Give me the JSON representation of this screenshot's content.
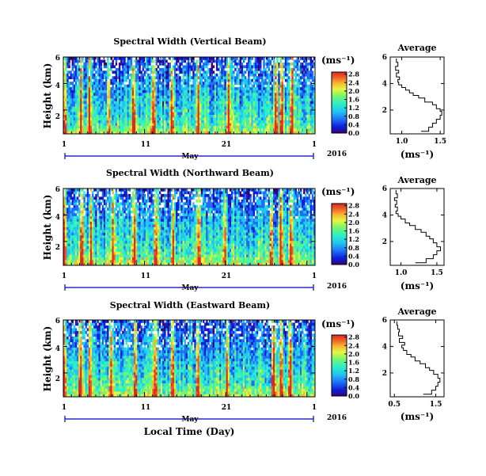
{
  "figure": {
    "xlabel": "Local Time (Day)",
    "month_label": "May",
    "year_label": "2016",
    "colorbar_unit": "(ms⁻¹)",
    "average_title": "Average",
    "average_xlabel": "(ms⁻¹)"
  },
  "chart_data": [
    {
      "type": "heatmap",
      "title": "Spectral Width (Vertical Beam)",
      "ylabel": "Height (km)",
      "x_ticks": [
        "1",
        "11",
        "21",
        "1"
      ],
      "x_range_days": [
        1,
        32
      ],
      "y_ticks": [
        "2",
        "4",
        "6"
      ],
      "ylim": [
        0.2,
        6
      ],
      "colorbar": {
        "ticks": [
          "0.0",
          "0.4",
          "0.8",
          "1.2",
          "1.6",
          "2.0",
          "2.4",
          "2.8"
        ],
        "range": [
          0,
          2.9
        ]
      },
      "high_width_days": [
        1.2,
        3.2,
        4.2,
        6.6,
        9.6,
        12.1,
        14.4,
        17.6,
        21.3,
        27.2,
        27.9,
        29.2
      ],
      "colorscale": [
        "#3a0078",
        "#0b1fd8",
        "#1f6df5",
        "#22c3f5",
        "#2cf0c6",
        "#74f56f",
        "#e6f542",
        "#f8b430",
        "#ee5a26",
        "#d92a22"
      ]
    },
    {
      "type": "heatmap",
      "title": "Spectral Width (Northward Beam)",
      "ylabel": "Height (km)",
      "x_ticks": [
        "1",
        "11",
        "21",
        "1"
      ],
      "x_range_days": [
        1,
        32
      ],
      "y_ticks": [
        "2",
        "4",
        "6"
      ],
      "ylim": [
        0.2,
        6
      ],
      "colorbar": {
        "ticks": [
          "0.0",
          "0.4",
          "0.8",
          "1.2",
          "1.6",
          "2.0",
          "2.4",
          "2.8"
        ],
        "range": [
          0,
          2.9
        ]
      },
      "high_width_days": [
        1.1,
        3.3,
        4.4,
        7.1,
        9.8,
        12.4,
        14.5,
        17.7,
        20.9,
        26.6,
        27.8,
        29.1
      ],
      "colorscale": [
        "#3a0078",
        "#0b1fd8",
        "#1f6df5",
        "#22c3f5",
        "#2cf0c6",
        "#74f56f",
        "#e6f542",
        "#f8b430",
        "#ee5a26",
        "#d92a22"
      ]
    },
    {
      "type": "heatmap",
      "title": "Spectral Width (Eastward Beam)",
      "ylabel": "Height (km)",
      "x_ticks": [
        "1",
        "11",
        "21",
        "1"
      ],
      "x_range_days": [
        1,
        32
      ],
      "y_ticks": [
        "2",
        "4",
        "6"
      ],
      "ylim": [
        0.2,
        6
      ],
      "colorbar": {
        "ticks": [
          "0.0",
          "0.4",
          "0.8",
          "1.2",
          "1.6",
          "2.0",
          "2.4",
          "2.8"
        ],
        "range": [
          0,
          2.9
        ]
      },
      "high_width_days": [
        1.1,
        3.1,
        4.3,
        6.9,
        9.9,
        12.3,
        14.4,
        17.6,
        21.2,
        26.9,
        27.9,
        29.0
      ],
      "colorscale": [
        "#3a0078",
        "#0b1fd8",
        "#1f6df5",
        "#22c3f5",
        "#2cf0c6",
        "#74f56f",
        "#e6f542",
        "#f8b430",
        "#ee5a26",
        "#d92a22"
      ]
    },
    {
      "type": "line",
      "title": "Average",
      "xlabel": "(ms⁻¹)",
      "x_ticks": [
        "1.0",
        "1.5"
      ],
      "xlim": [
        0.85,
        1.55
      ],
      "y_ticks": [
        "2",
        "4",
        "6"
      ],
      "ylim": [
        0.2,
        6
      ],
      "x": [
        1.25,
        1.35,
        1.4,
        1.45,
        1.5,
        1.52,
        1.5,
        1.45,
        1.4,
        1.3,
        1.22,
        1.15,
        1.1,
        1.05,
        1.0,
        0.96,
        0.95,
        0.97,
        0.93,
        0.96,
        0.92,
        0.95,
        0.93
      ],
      "y": [
        0.4,
        0.7,
        1.0,
        1.3,
        1.6,
        1.9,
        2.1,
        2.4,
        2.6,
        2.9,
        3.1,
        3.3,
        3.5,
        3.7,
        3.9,
        4.1,
        4.3,
        4.5,
        4.8,
        5.0,
        5.3,
        5.6,
        5.9
      ]
    },
    {
      "type": "line",
      "title": "Average",
      "xlabel": "(ms⁻¹)",
      "x_ticks": [
        "1.0",
        "1.5"
      ],
      "xlim": [
        0.85,
        1.6
      ],
      "y_ticks": [
        "2",
        "4",
        "6"
      ],
      "ylim": [
        0.2,
        6
      ],
      "x": [
        1.2,
        1.35,
        1.45,
        1.5,
        1.55,
        1.5,
        1.45,
        1.4,
        1.35,
        1.28,
        1.2,
        1.12,
        1.06,
        1.0,
        0.96,
        0.93,
        0.95,
        0.92,
        0.94,
        0.91,
        0.95,
        0.93
      ],
      "y": [
        0.4,
        0.7,
        1.0,
        1.3,
        1.6,
        1.9,
        2.2,
        2.4,
        2.7,
        2.9,
        3.2,
        3.4,
        3.7,
        3.9,
        4.1,
        4.3,
        4.6,
        4.8,
        5.1,
        5.3,
        5.6,
        5.9
      ]
    },
    {
      "type": "line",
      "title": "Average",
      "xlabel": "(ms⁻¹)",
      "x_ticks": [
        "0.5",
        "1.5"
      ],
      "xlim": [
        0.4,
        1.7
      ],
      "y_ticks": [
        "2",
        "4",
        "6"
      ],
      "ylim": [
        0.2,
        6
      ],
      "x": [
        1.2,
        1.4,
        1.5,
        1.55,
        1.6,
        1.55,
        1.45,
        1.35,
        1.25,
        1.12,
        1.0,
        0.9,
        0.8,
        0.72,
        0.68,
        0.75,
        0.62,
        0.7,
        0.6,
        0.62,
        0.58,
        0.56
      ],
      "y": [
        0.4,
        0.7,
        1.0,
        1.3,
        1.6,
        1.9,
        2.2,
        2.4,
        2.7,
        2.9,
        3.2,
        3.4,
        3.7,
        3.9,
        4.1,
        4.3,
        4.6,
        4.8,
        5.1,
        5.3,
        5.6,
        5.9
      ]
    }
  ]
}
